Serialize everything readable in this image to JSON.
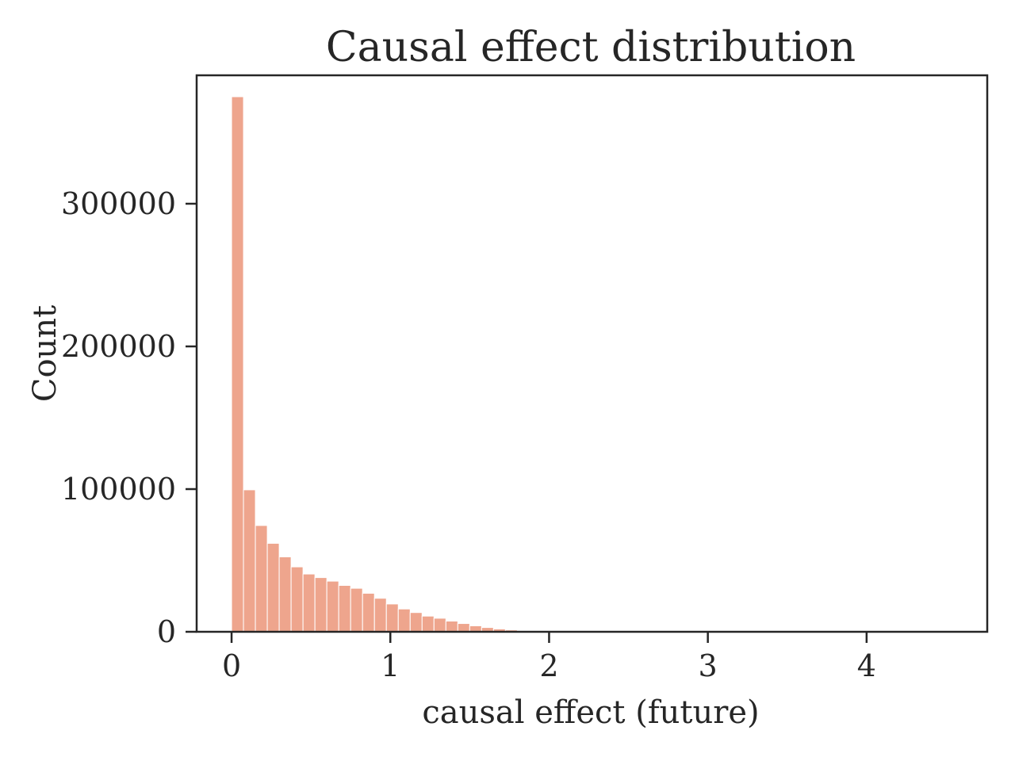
{
  "chart_data": {
    "type": "bar",
    "title": "Causal effect distribution",
    "xlabel": "causal effect (future)",
    "ylabel": "Count",
    "xlim": [
      -0.22,
      4.76
    ],
    "ylim": [
      0,
      390000
    ],
    "xticks": [
      0,
      1,
      2,
      3,
      4
    ],
    "yticks": [
      0,
      100000,
      200000,
      300000
    ],
    "grid": false,
    "legend": "none",
    "bar_color": "#eea58d",
    "axis_color": "#262626",
    "bins": {
      "start": 0.0,
      "width": 0.075,
      "values": [
        375000,
        99500,
        74500,
        62000,
        52500,
        45500,
        40500,
        38000,
        35500,
        32500,
        30500,
        27000,
        23500,
        19500,
        16000,
        13500,
        11000,
        9500,
        7500,
        5800,
        4200,
        3000,
        2000,
        1300,
        700,
        300,
        100
      ]
    }
  }
}
